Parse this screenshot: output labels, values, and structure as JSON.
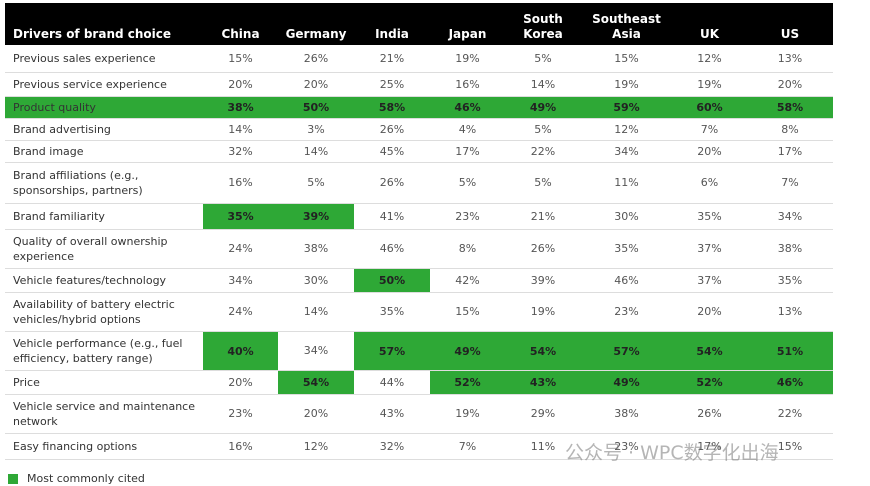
{
  "table": {
    "header": [
      "Drivers of brand choice",
      "China",
      "Germany",
      "India",
      "Japan",
      "South Korea",
      "Southeast Asia",
      "UK",
      "US"
    ],
    "highlight_color": "#2ea836",
    "rows": [
      {
        "label": "Previous sales experience",
        "values": [
          "15%",
          "26%",
          "21%",
          "19%",
          "5%",
          "15%",
          "12%",
          "13%"
        ],
        "highlight": [
          false,
          false,
          false,
          false,
          false,
          false,
          false,
          false
        ]
      },
      {
        "label": "Previous service experience",
        "values": [
          "20%",
          "20%",
          "25%",
          "16%",
          "14%",
          "19%",
          "19%",
          "20%"
        ],
        "highlight": [
          false,
          false,
          false,
          false,
          false,
          false,
          false,
          false
        ]
      },
      {
        "label": "Product quality",
        "values": [
          "38%",
          "50%",
          "58%",
          "46%",
          "49%",
          "59%",
          "60%",
          "58%"
        ],
        "highlight": [
          true,
          true,
          true,
          true,
          true,
          true,
          true,
          true
        ],
        "row_highlight": true
      },
      {
        "label": "Brand advertising",
        "values": [
          "14%",
          "3%",
          "26%",
          "4%",
          "5%",
          "12%",
          "7%",
          "8%"
        ],
        "highlight": [
          false,
          false,
          false,
          false,
          false,
          false,
          false,
          false
        ]
      },
      {
        "label": "Brand image",
        "values": [
          "32%",
          "14%",
          "45%",
          "17%",
          "22%",
          "34%",
          "20%",
          "17%"
        ],
        "highlight": [
          false,
          false,
          false,
          false,
          false,
          false,
          false,
          false
        ]
      },
      {
        "label": "Brand affiliations (e.g., sponsorships, partners)",
        "values": [
          "16%",
          "5%",
          "26%",
          "5%",
          "5%",
          "11%",
          "6%",
          "7%"
        ],
        "highlight": [
          false,
          false,
          false,
          false,
          false,
          false,
          false,
          false
        ]
      },
      {
        "label": "Brand familiarity",
        "values": [
          "35%",
          "39%",
          "41%",
          "23%",
          "21%",
          "30%",
          "35%",
          "34%"
        ],
        "highlight": [
          true,
          true,
          false,
          false,
          false,
          false,
          false,
          false
        ]
      },
      {
        "label": "Quality of overall ownership experience",
        "values": [
          "24%",
          "38%",
          "46%",
          "8%",
          "26%",
          "35%",
          "37%",
          "38%"
        ],
        "highlight": [
          false,
          false,
          false,
          false,
          false,
          false,
          false,
          false
        ]
      },
      {
        "label": "Vehicle features/technology",
        "values": [
          "34%",
          "30%",
          "50%",
          "42%",
          "39%",
          "46%",
          "37%",
          "35%"
        ],
        "highlight": [
          false,
          false,
          true,
          false,
          false,
          false,
          false,
          false
        ]
      },
      {
        "label": "Availability of battery electric vehicles/hybrid options",
        "values": [
          "24%",
          "14%",
          "35%",
          "15%",
          "19%",
          "23%",
          "20%",
          "13%"
        ],
        "highlight": [
          false,
          false,
          false,
          false,
          false,
          false,
          false,
          false
        ]
      },
      {
        "label": "Vehicle performance (e.g., fuel efficiency, battery range)",
        "values": [
          "40%",
          "34%",
          "57%",
          "49%",
          "54%",
          "57%",
          "54%",
          "51%"
        ],
        "highlight": [
          true,
          false,
          true,
          true,
          true,
          true,
          true,
          true
        ]
      },
      {
        "label": "Price",
        "values": [
          "20%",
          "54%",
          "44%",
          "52%",
          "43%",
          "49%",
          "52%",
          "46%"
        ],
        "highlight": [
          false,
          true,
          false,
          true,
          true,
          true,
          true,
          true
        ]
      },
      {
        "label": "Vehicle service and maintenance network",
        "values": [
          "23%",
          "20%",
          "43%",
          "19%",
          "29%",
          "38%",
          "26%",
          "22%"
        ],
        "highlight": [
          false,
          false,
          false,
          false,
          false,
          false,
          false,
          false
        ]
      },
      {
        "label": "Easy financing options",
        "values": [
          "16%",
          "12%",
          "32%",
          "7%",
          "11%",
          "23%",
          "17%",
          "15%"
        ],
        "highlight": [
          false,
          false,
          false,
          false,
          false,
          false,
          false,
          false
        ]
      }
    ]
  },
  "legend": {
    "label": "Most commonly cited"
  },
  "watermark": "公众号 · WPC数字化出海"
}
